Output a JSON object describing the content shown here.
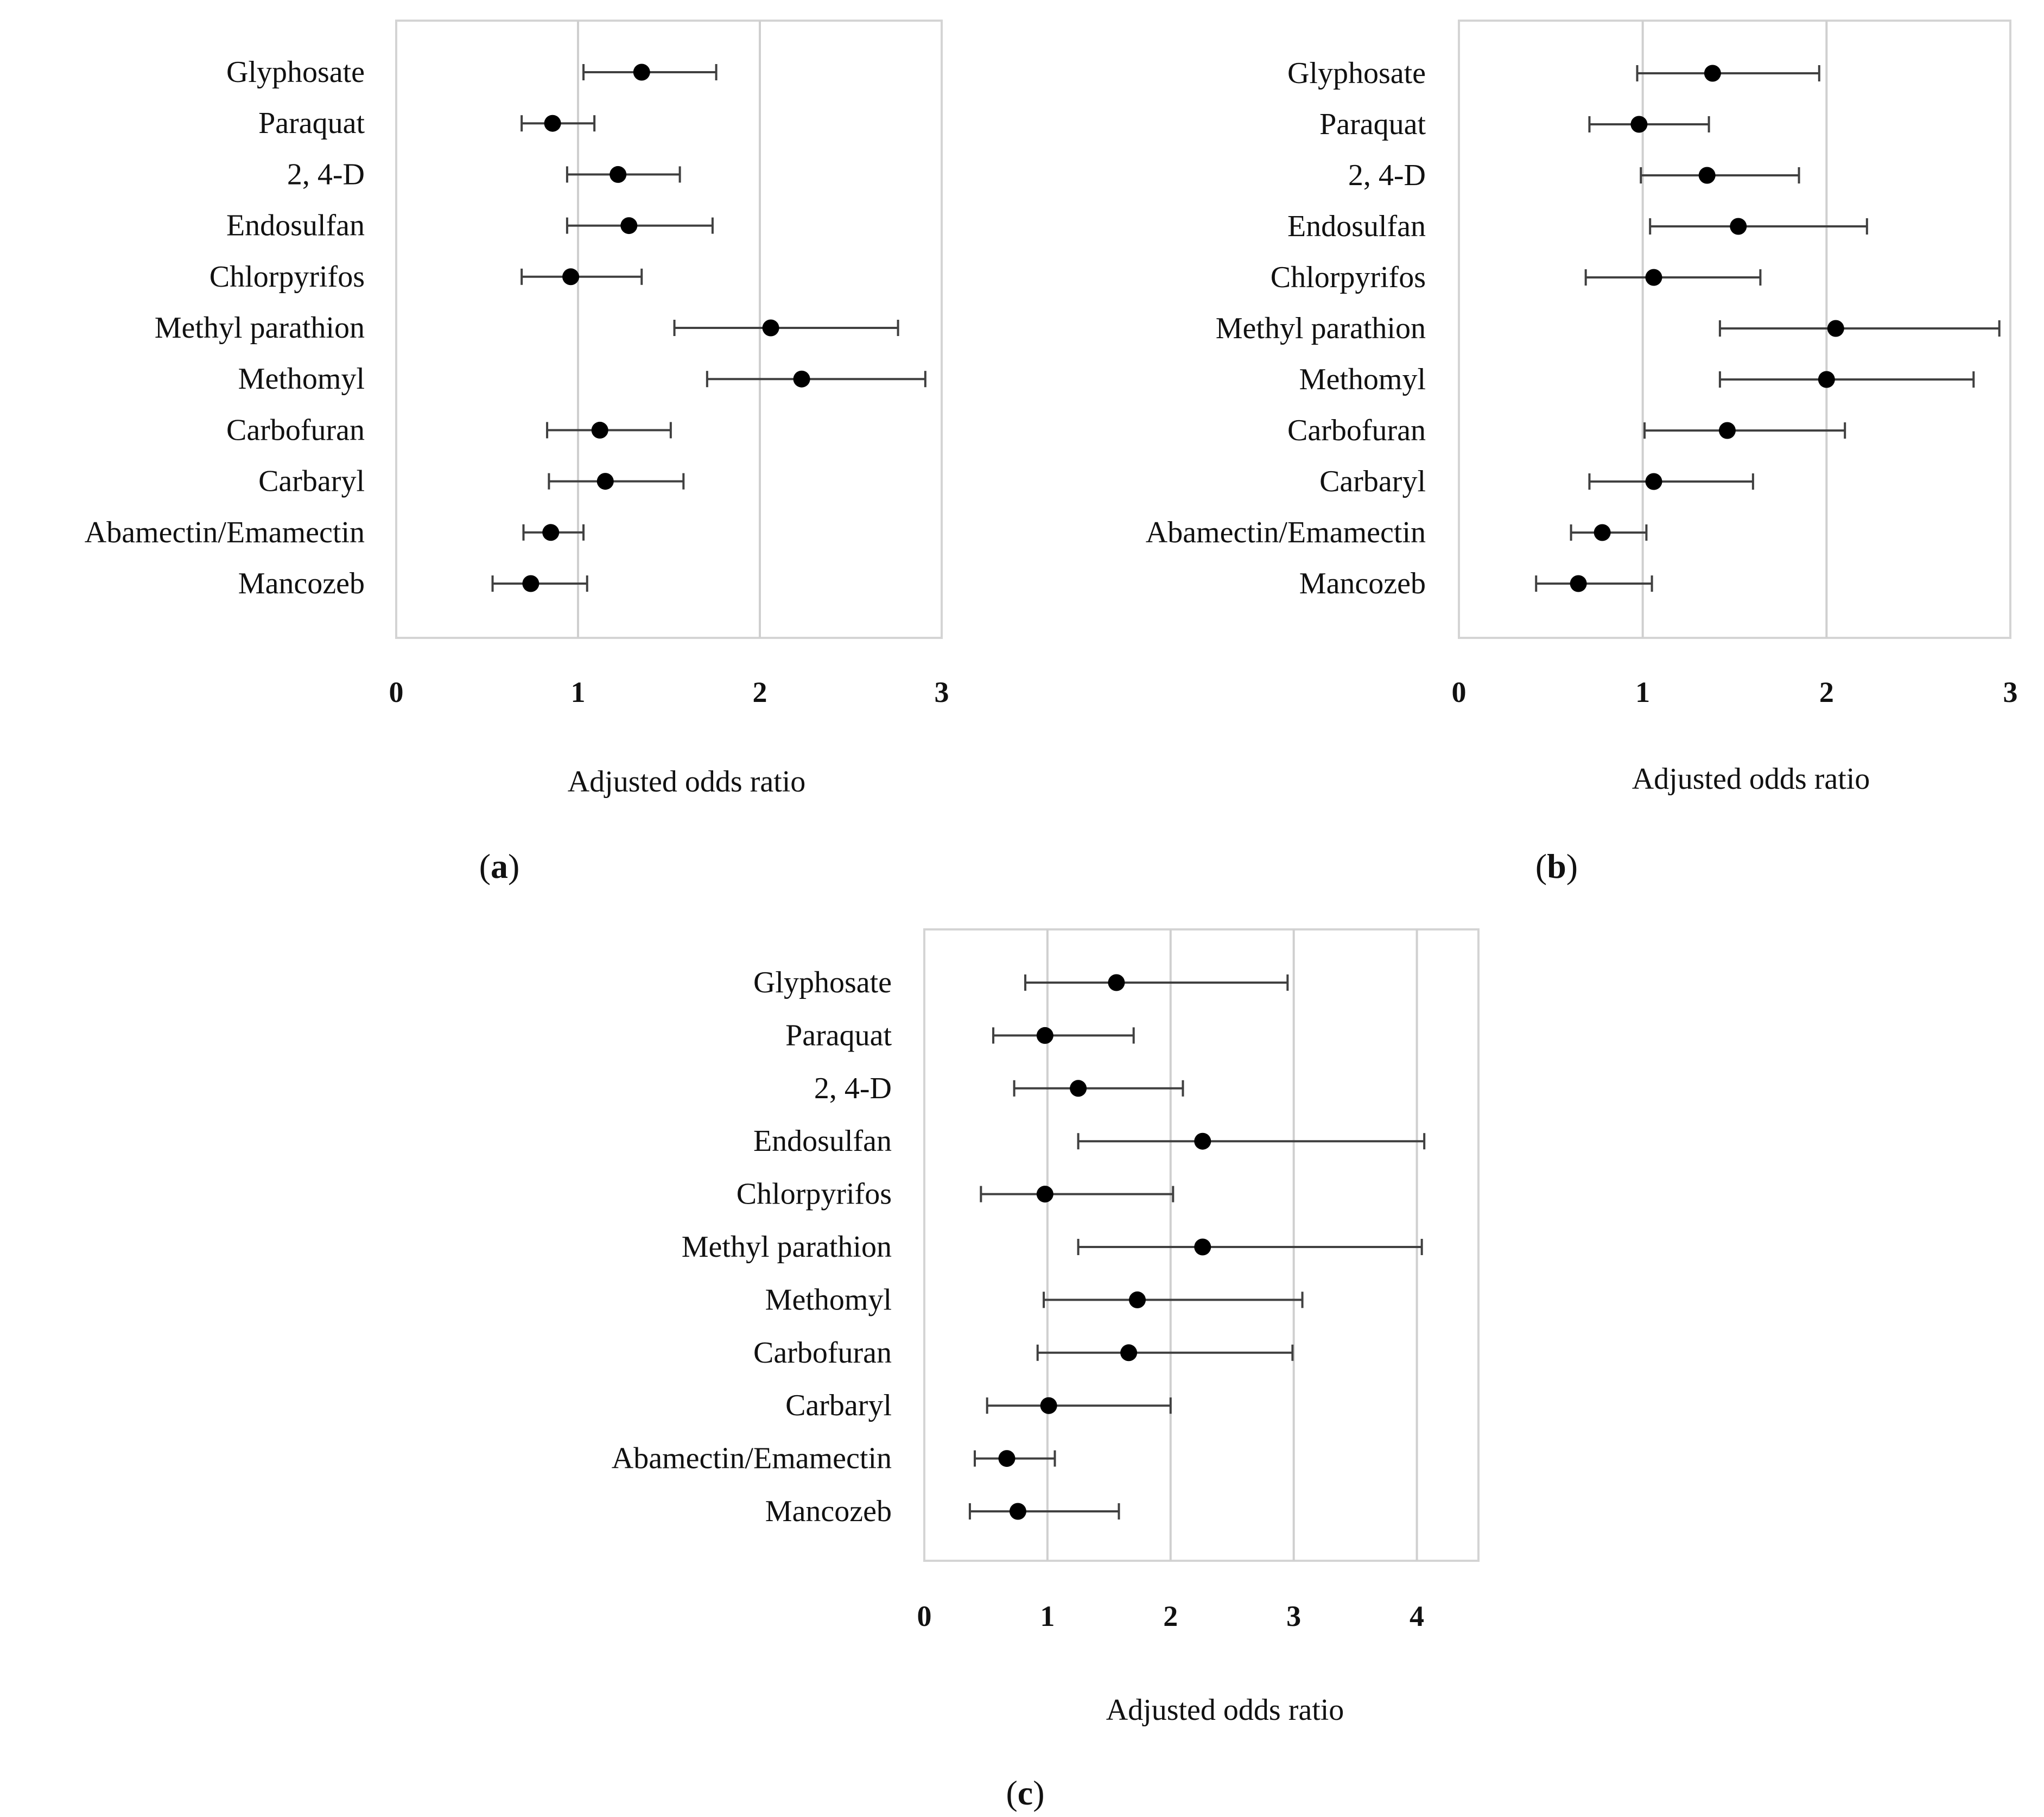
{
  "chart_data": [
    {
      "type": "forest",
      "panel_label": "a",
      "xlabel": "Adjusted odds ratio",
      "xlim": [
        0,
        3
      ],
      "xticks": [
        "0",
        "1",
        "2",
        "3"
      ],
      "grid_lines_at": [
        1,
        2
      ],
      "categories": [
        "Glyphosate",
        "Paraquat",
        "2, 4-D",
        "Endosulfan",
        "Chlorpyrifos",
        "Methyl parathion",
        "Methomyl",
        "Carbofuran",
        "Carbaryl",
        "Abamectin/Emamectin",
        "Mancozeb"
      ],
      "estimates": [
        1.35,
        0.86,
        1.22,
        1.28,
        0.96,
        2.06,
        2.23,
        1.12,
        1.15,
        0.85,
        0.74
      ],
      "ci_lower": [
        1.03,
        0.69,
        0.94,
        0.94,
        0.69,
        1.53,
        1.71,
        0.83,
        0.84,
        0.7,
        0.53
      ],
      "ci_upper": [
        1.76,
        1.09,
        1.56,
        1.74,
        1.35,
        2.76,
        2.91,
        1.51,
        1.58,
        1.03,
        1.05
      ]
    },
    {
      "type": "forest",
      "panel_label": "b",
      "xlabel": "Adjusted odds ratio",
      "xlim": [
        0,
        3
      ],
      "xticks": [
        "0",
        "1",
        "2",
        "3"
      ],
      "grid_lines_at": [
        1,
        2
      ],
      "categories": [
        "Glyphosate",
        "Paraquat",
        "2, 4-D",
        "Endosulfan",
        "Chlorpyrifos",
        "Methyl parathion",
        "Methomyl",
        "Carbofuran",
        "Carbaryl",
        "Abamectin/Emamectin",
        "Mancozeb"
      ],
      "estimates": [
        1.38,
        0.98,
        1.35,
        1.52,
        1.06,
        2.05,
        2.0,
        1.46,
        1.06,
        0.78,
        0.65
      ],
      "ci_lower": [
        0.97,
        0.71,
        0.99,
        1.04,
        0.69,
        1.42,
        1.42,
        1.01,
        0.71,
        0.61,
        0.42
      ],
      "ci_upper": [
        1.96,
        1.36,
        1.85,
        2.22,
        1.64,
        2.94,
        2.8,
        2.1,
        1.6,
        1.02,
        1.05
      ]
    },
    {
      "type": "forest",
      "panel_label": "c",
      "xlabel": "Adjusted odds ratio",
      "xlim": [
        0,
        4.5
      ],
      "xticks": [
        "0",
        "1",
        "2",
        "3",
        "4"
      ],
      "grid_lines_at": [
        1,
        2,
        3,
        4
      ],
      "categories": [
        "Glyphosate",
        "Paraquat",
        "2, 4-D",
        "Endosulfan",
        "Chlorpyrifos",
        "Methyl parathion",
        "Methomyl",
        "Carbofuran",
        "Carbaryl",
        "Abamectin/Emamectin",
        "Mancozeb"
      ],
      "estimates": [
        1.56,
        0.98,
        1.25,
        2.26,
        0.98,
        2.26,
        1.73,
        1.66,
        1.01,
        0.67,
        0.76
      ],
      "ci_lower": [
        0.82,
        0.56,
        0.73,
        1.25,
        0.46,
        1.25,
        0.97,
        0.92,
        0.51,
        0.41,
        0.37
      ],
      "ci_upper": [
        2.95,
        1.7,
        2.1,
        4.06,
        2.02,
        4.04,
        3.07,
        2.99,
        2.0,
        1.06,
        1.58
      ]
    }
  ]
}
